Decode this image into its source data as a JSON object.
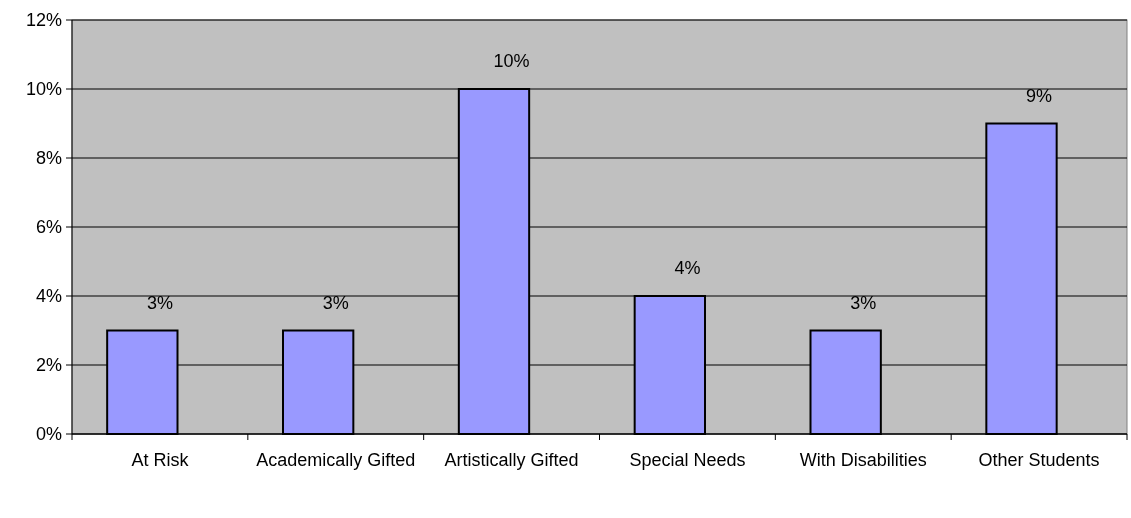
{
  "chart_data": {
    "type": "bar",
    "categories": [
      "At Risk",
      "Academically Gifted",
      "Artistically Gifted",
      "Special Needs",
      "With Disabilities",
      "Other Students"
    ],
    "values": [
      3,
      3,
      10,
      4,
      3,
      9
    ],
    "color": "#9999ff",
    "value_labels": [
      "3%",
      "3%",
      "10%",
      "4%",
      "3%",
      "9%"
    ],
    "ylim": [
      0,
      12
    ],
    "yticks": [
      {
        "value": 0,
        "label": "0%"
      },
      {
        "value": 2,
        "label": "2%"
      },
      {
        "value": 4,
        "label": "4%"
      },
      {
        "value": 6,
        "label": "6%"
      },
      {
        "value": 8,
        "label": "8%"
      },
      {
        "value": 10,
        "label": "10%"
      },
      {
        "value": 12,
        "label": "12%"
      }
    ],
    "grid": "y"
  }
}
